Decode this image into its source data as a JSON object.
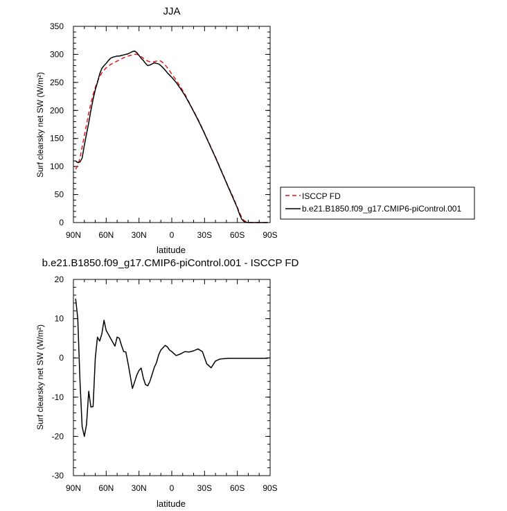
{
  "chart_data": [
    {
      "type": "line",
      "title": "JJA",
      "xlabel": "latitude",
      "ylabel": "Surf clearsky net SW (W/m²)",
      "xlim": [
        90,
        -90
      ],
      "ylim": [
        0,
        350
      ],
      "x_ticks": [
        90,
        60,
        30,
        0,
        -30,
        -60,
        -90
      ],
      "x_tick_labels": [
        "90N",
        "60N",
        "30N",
        "0",
        "30S",
        "60S",
        "90S"
      ],
      "y_ticks": [
        0,
        50,
        100,
        150,
        200,
        250,
        300,
        350
      ],
      "y_tick_labels": [
        "0",
        "50",
        "100",
        "150",
        "200",
        "250",
        "300",
        "350"
      ],
      "legend_position": "outside-right",
      "series": [
        {
          "name": "ISCCP FD",
          "color": "#e8151b",
          "dash": "dashed",
          "x": [
            88,
            86,
            84,
            82,
            80,
            78,
            76,
            74,
            72,
            70,
            68,
            66,
            64,
            62,
            60,
            58,
            56,
            54,
            52,
            50,
            48,
            46,
            44,
            42,
            40,
            38,
            36,
            34,
            32,
            30,
            28,
            26,
            24,
            22,
            20,
            18,
            16,
            14,
            12,
            10,
            8,
            6,
            4,
            2,
            0,
            -4,
            -8,
            -12,
            -16,
            -20,
            -24,
            -28,
            -32,
            -36,
            -40,
            -44,
            -48,
            -52,
            -56,
            -60,
            -62,
            -64,
            -66,
            -68,
            -70,
            -74,
            -78,
            -82,
            -86,
            -88
          ],
          "y": [
            95,
            102,
            115,
            135,
            155,
            175,
            195,
            213,
            228,
            241,
            252,
            260,
            267,
            272,
            276,
            279,
            282,
            284,
            286,
            288,
            290,
            292,
            294,
            296,
            297,
            298,
            299,
            300,
            300,
            299,
            296,
            293,
            290,
            288,
            287,
            287,
            287,
            288,
            289,
            288,
            285,
            281,
            276,
            271,
            265,
            254,
            242,
            229,
            214,
            199,
            184,
            168,
            151,
            134,
            117,
            99,
            81,
            63,
            46,
            27,
            18,
            9,
            4,
            1.5,
            0.5,
            0,
            0,
            0,
            0,
            0
          ]
        },
        {
          "name": "b.e21.B1850.f09_g17.CMIP6-piControl.001",
          "color": "#000000",
          "dash": "solid",
          "x": [
            88,
            86,
            84,
            82,
            80,
            78,
            76,
            74,
            72,
            70,
            68,
            66,
            64,
            62,
            60,
            58,
            56,
            54,
            52,
            50,
            48,
            46,
            44,
            42,
            40,
            38,
            36,
            34,
            32,
            30,
            28,
            26,
            24,
            22,
            20,
            18,
            16,
            14,
            12,
            10,
            8,
            6,
            4,
            2,
            0,
            -4,
            -8,
            -12,
            -16,
            -20,
            -24,
            -28,
            -32,
            -36,
            -40,
            -44,
            -48,
            -52,
            -56,
            -60,
            -62,
            -64,
            -66,
            -68,
            -70,
            -74,
            -78,
            -82,
            -86,
            -88
          ],
          "y": [
            110,
            107,
            108,
            115,
            138,
            158,
            178,
            200,
            220,
            237,
            250,
            265,
            275,
            280,
            284,
            289,
            293,
            295,
            296,
            297,
            297,
            298,
            299,
            300,
            301,
            303,
            305,
            306,
            303,
            298,
            293,
            289,
            284,
            280,
            281,
            283,
            285,
            284,
            283,
            280,
            276,
            272,
            267,
            263,
            259,
            250,
            239,
            227,
            213,
            198,
            183,
            167,
            150,
            133,
            116,
            98,
            80,
            62,
            44,
            26,
            15,
            6,
            2,
            0.5,
            0,
            0,
            0,
            0,
            0,
            0
          ]
        }
      ]
    },
    {
      "type": "line",
      "title": "b.e21.B1850.f09_g17.CMIP6-piControl.001 - ISCCP FD",
      "xlabel": "latitude",
      "ylabel": "Surf clearsky net SW (W/m²)",
      "xlim": [
        90,
        -90
      ],
      "ylim": [
        -30,
        20
      ],
      "x_ticks": [
        90,
        60,
        30,
        0,
        -30,
        -60,
        -90
      ],
      "x_tick_labels": [
        "90N",
        "60N",
        "30N",
        "0",
        "30S",
        "60S",
        "90S"
      ],
      "y_ticks": [
        -30,
        -20,
        -10,
        0,
        10,
        20
      ],
      "y_tick_labels": [
        "-30",
        "-20",
        "-10",
        "0",
        "10",
        "20"
      ],
      "series": [
        {
          "color": "#000000",
          "dash": "solid",
          "x": [
            88,
            86,
            84,
            82,
            80,
            78,
            76,
            74,
            72,
            70,
            68,
            66,
            64,
            62,
            60,
            58,
            56,
            54,
            52,
            50,
            48,
            46,
            44,
            42,
            40,
            38,
            36,
            34,
            32,
            30,
            28,
            26,
            24,
            22,
            20,
            18,
            16,
            14,
            12,
            10,
            8,
            6,
            4,
            2,
            0,
            -4,
            -8,
            -12,
            -16,
            -20,
            -24,
            -28,
            -32,
            -36,
            -40,
            -44,
            -48,
            -52,
            -56,
            -60,
            -62,
            -64,
            -66,
            -68,
            -70,
            -74,
            -78,
            -82,
            -86,
            -88
          ],
          "y": [
            15.1,
            10,
            -6,
            -17.5,
            -20,
            -17,
            -8.5,
            -12.5,
            -12.4,
            0,
            5.3,
            4.3,
            6.1,
            9.6,
            7,
            6,
            5,
            4,
            3,
            5.3,
            5,
            3.2,
            1.6,
            1.5,
            -1.4,
            -4.5,
            -7.8,
            -6.1,
            -4.4,
            -3.2,
            -2.6,
            -5.2,
            -6.8,
            -7.1,
            -6,
            -4.2,
            -2.4,
            -1.2,
            0.8,
            2,
            2.6,
            3.2,
            2.8,
            2.0,
            1.6,
            0.6,
            1,
            1.6,
            1.5,
            1.8,
            2.3,
            1.6,
            -1.5,
            -2.5,
            -0.8,
            -0.3,
            -0.2,
            -0.1,
            -0.1,
            -0.1,
            -0.1,
            -0.1,
            -0.1,
            -0.1,
            -0.1,
            -0.1,
            -0.1,
            -0.1,
            -0.1,
            -0.1
          ]
        }
      ]
    }
  ]
}
